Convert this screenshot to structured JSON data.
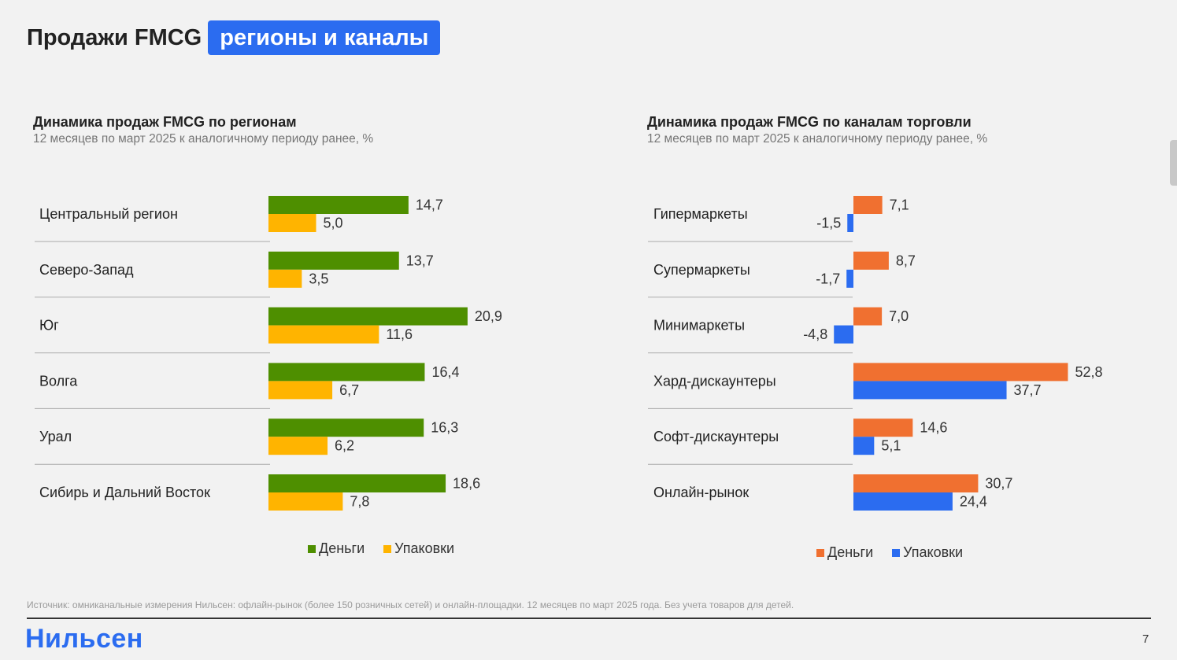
{
  "title": {
    "main": "Продажи FMCG",
    "highlight": "регионы и каналы"
  },
  "chart_data": [
    {
      "type": "bar",
      "orientation": "horizontal",
      "title": "Динамика продаж FMCG по регионам",
      "subtitle": "12 месяцев по март 2025 к аналогичному периоду ранее, %",
      "categories": [
        "Центральный регион",
        "Северо-Запад",
        "Юг",
        "Волга",
        "Урал",
        "Сибирь и Дальний Восток"
      ],
      "series": [
        {
          "name": "Деньги",
          "color": "#4e8f00",
          "values": [
            14.7,
            13.7,
            20.9,
            16.4,
            16.3,
            18.6
          ],
          "labels": [
            "14,7",
            "13,7",
            "20,9",
            "16,4",
            "16,3",
            "18,6"
          ]
        },
        {
          "name": "Упаковки",
          "color": "#ffb400",
          "values": [
            5.0,
            3.5,
            11.6,
            6.7,
            6.2,
            7.8
          ],
          "labels": [
            "5,0",
            "3,5",
            "11,6",
            "6,7",
            "6,2",
            "7,8"
          ]
        }
      ],
      "grid": false,
      "legend_position": "bottom"
    },
    {
      "type": "bar",
      "orientation": "horizontal",
      "title": "Динамика продаж FMCG по каналам торговли",
      "subtitle": "12 месяцев по март 2025 к аналогичному периоду ранее, %",
      "categories": [
        "Гипермаркеты",
        "Супермаркеты",
        "Минимаркеты",
        "Хард-дискаунтеры",
        "Софт-дискаунтеры",
        "Онлайн-рынок"
      ],
      "series": [
        {
          "name": "Деньги",
          "color": "#f07030",
          "values": [
            7.1,
            8.7,
            7.0,
            52.8,
            14.6,
            30.7
          ],
          "labels": [
            "7,1",
            "8,7",
            "7,0",
            "52,8",
            "14,6",
            "30,7"
          ]
        },
        {
          "name": "Упаковки",
          "color": "#2b6cf0",
          "values": [
            -1.5,
            -1.7,
            -4.8,
            37.7,
            5.1,
            24.4
          ],
          "labels": [
            "-1,5",
            "-1,7",
            "-4,8",
            "37,7",
            "5,1",
            "24,4"
          ]
        }
      ],
      "grid": false,
      "legend_position": "bottom"
    }
  ],
  "footer": {
    "source": "Источник: омниканальные измерения Нильсен: офлайн-рынок (более 150 розничных сетей) и онлайн-площадки. 12 месяцев по март 2025 года. Без учета товаров для детей.",
    "logo": "Нильсен",
    "page_number": "7"
  }
}
